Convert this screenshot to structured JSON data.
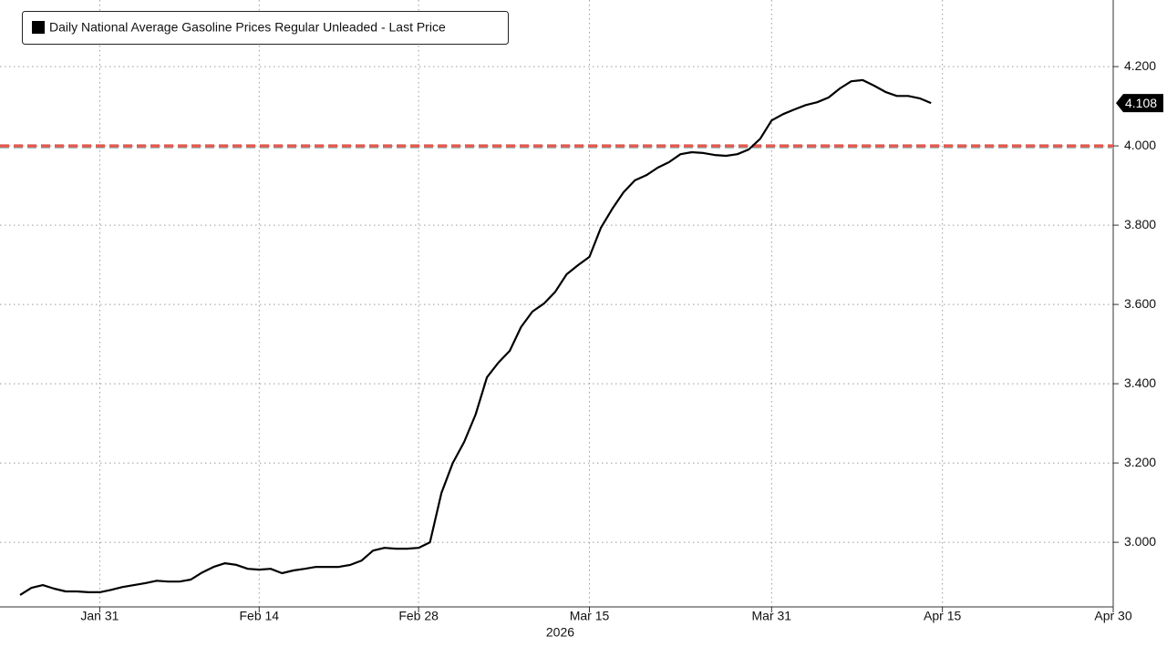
{
  "chart_data": {
    "type": "line",
    "xlabel": "2026",
    "x": [
      "2026-01-24",
      "2026-01-25",
      "2026-01-26",
      "2026-01-27",
      "2026-01-28",
      "2026-01-29",
      "2026-01-30",
      "2026-01-31",
      "2026-02-01",
      "2026-02-02",
      "2026-02-03",
      "2026-02-04",
      "2026-02-05",
      "2026-02-06",
      "2026-02-07",
      "2026-02-08",
      "2026-02-09",
      "2026-02-10",
      "2026-02-11",
      "2026-02-12",
      "2026-02-13",
      "2026-02-14",
      "2026-02-15",
      "2026-02-16",
      "2026-02-17",
      "2026-02-18",
      "2026-02-19",
      "2026-02-20",
      "2026-02-21",
      "2026-02-22",
      "2026-02-23",
      "2026-02-24",
      "2026-02-25",
      "2026-02-26",
      "2026-02-27",
      "2026-02-28",
      "2026-03-01",
      "2026-03-02",
      "2026-03-03",
      "2026-03-04",
      "2026-03-05",
      "2026-03-06",
      "2026-03-07",
      "2026-03-08",
      "2026-03-09",
      "2026-03-10",
      "2026-03-11",
      "2026-03-12",
      "2026-03-13",
      "2026-03-14",
      "2026-03-15",
      "2026-03-16",
      "2026-03-17",
      "2026-03-18",
      "2026-03-19",
      "2026-03-20",
      "2026-03-21",
      "2026-03-22",
      "2026-03-23",
      "2026-03-24",
      "2026-03-25",
      "2026-03-26",
      "2026-03-27",
      "2026-03-28",
      "2026-03-29",
      "2026-03-30",
      "2026-03-31",
      "2026-04-01",
      "2026-04-02",
      "2026-04-03",
      "2026-04-04",
      "2026-04-05",
      "2026-04-06",
      "2026-04-07",
      "2026-04-08",
      "2026-04-09",
      "2026-04-10",
      "2026-04-11",
      "2026-04-12",
      "2026-04-13",
      "2026-04-14"
    ],
    "series": [
      {
        "name": "Daily National Average Gasoline Prices Regular Unleaded - Last Price",
        "color": "#000000",
        "values": [
          2.867,
          2.885,
          2.892,
          2.883,
          2.876,
          2.876,
          2.874,
          2.874,
          2.88,
          2.887,
          2.892,
          2.897,
          2.903,
          2.901,
          2.901,
          2.906,
          2.924,
          2.938,
          2.947,
          2.943,
          2.933,
          2.931,
          2.933,
          2.922,
          2.929,
          2.933,
          2.938,
          2.938,
          2.938,
          2.943,
          2.954,
          2.979,
          2.986,
          2.984,
          2.984,
          2.986,
          3.0,
          3.124,
          3.2,
          3.253,
          3.322,
          3.416,
          3.453,
          3.483,
          3.543,
          3.582,
          3.602,
          3.632,
          3.676,
          3.699,
          3.72,
          3.793,
          3.841,
          3.883,
          3.913,
          3.926,
          3.945,
          3.959,
          3.979,
          3.984,
          3.982,
          3.977,
          3.975,
          3.979,
          3.991,
          4.018,
          4.064,
          4.08,
          4.092,
          4.103,
          4.11,
          4.122,
          4.145,
          4.163,
          4.166,
          4.152,
          4.136,
          4.126,
          4.126,
          4.12,
          4.108
        ]
      }
    ],
    "last_label": "4.108",
    "reference_lines": [
      {
        "value": 4,
        "color": "#e05a50"
      }
    ],
    "xlim": [
      "2026-01-24",
      "2026-04-30"
    ],
    "xticks": [
      {
        "value": "2026-01-31",
        "label": "Jan 31"
      },
      {
        "value": "2026-02-14",
        "label": "Feb 14"
      },
      {
        "value": "2026-02-28",
        "label": "Feb 28"
      },
      {
        "value": "2026-03-15",
        "label": "Mar 15"
      },
      {
        "value": "2026-03-31",
        "label": "Mar 31"
      },
      {
        "value": "2026-04-15",
        "label": "Apr 15"
      },
      {
        "value": "2026-04-30",
        "label": "Apr 30"
      }
    ],
    "ylim": [
      2.837,
      4.368
    ],
    "yticks": [
      {
        "value": 3,
        "label": "3.000"
      },
      {
        "value": 3.2,
        "label": "3.200"
      },
      {
        "value": 3.4,
        "label": "3.400"
      },
      {
        "value": 3.6,
        "label": "3.600"
      },
      {
        "value": 3.8,
        "label": "3.800"
      },
      {
        "value": 4,
        "label": "4.000"
      },
      {
        "value": 4.2,
        "label": "4.200"
      }
    ],
    "grid": true,
    "legend": "upper left"
  }
}
